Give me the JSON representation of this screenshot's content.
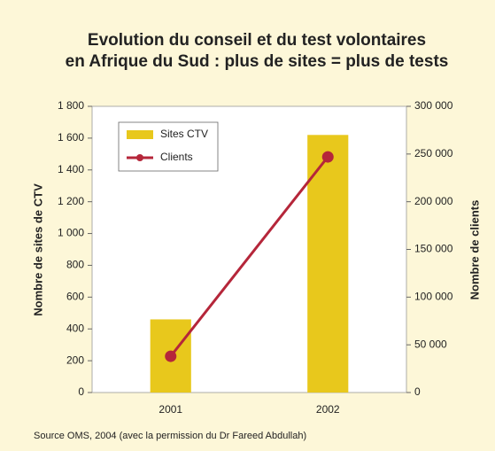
{
  "chart_data": {
    "type": "bar",
    "title": [
      "Evolution du conseil et du test volontaires",
      "en Afrique du Sud : plus de sites = plus de tests"
    ],
    "categories": [
      "2001",
      "2002"
    ],
    "series": [
      {
        "name": "Sites CTV",
        "type": "bar",
        "color": "#e8c81c",
        "values": [
          460,
          1620
        ]
      },
      {
        "name": "Clients",
        "type": "line",
        "axis": "y2",
        "color": "#b5263a",
        "values": [
          38000,
          247000
        ]
      }
    ],
    "ylabel": "Nombre de sites de CTV",
    "y2label": "Nombre de clients",
    "ylim": [
      0,
      1800
    ],
    "yticks": [
      0,
      200,
      400,
      600,
      800,
      {
        "value": 1000,
        "label": "1 000"
      },
      {
        "value": 1200,
        "label": "1 200"
      },
      {
        "value": 1400,
        "label": "1 400"
      },
      {
        "value": 1600,
        "label": "1 600"
      },
      {
        "value": 1800,
        "label": "1 800"
      }
    ],
    "y2lim": [
      0,
      300000
    ],
    "y2ticks": [
      0,
      {
        "value": 50000,
        "label": "50 000"
      },
      {
        "value": 100000,
        "label": "100 000"
      },
      {
        "value": 150000,
        "label": "150 000"
      },
      {
        "value": 200000,
        "label": "200 000"
      },
      {
        "value": 250000,
        "label": "250 000"
      },
      {
        "value": 300000,
        "label": "300 000"
      }
    ],
    "grid": false,
    "legend": "upper left",
    "source": "Source OMS, 2004 (avec la permission du Dr Fareed Abdullah)"
  }
}
